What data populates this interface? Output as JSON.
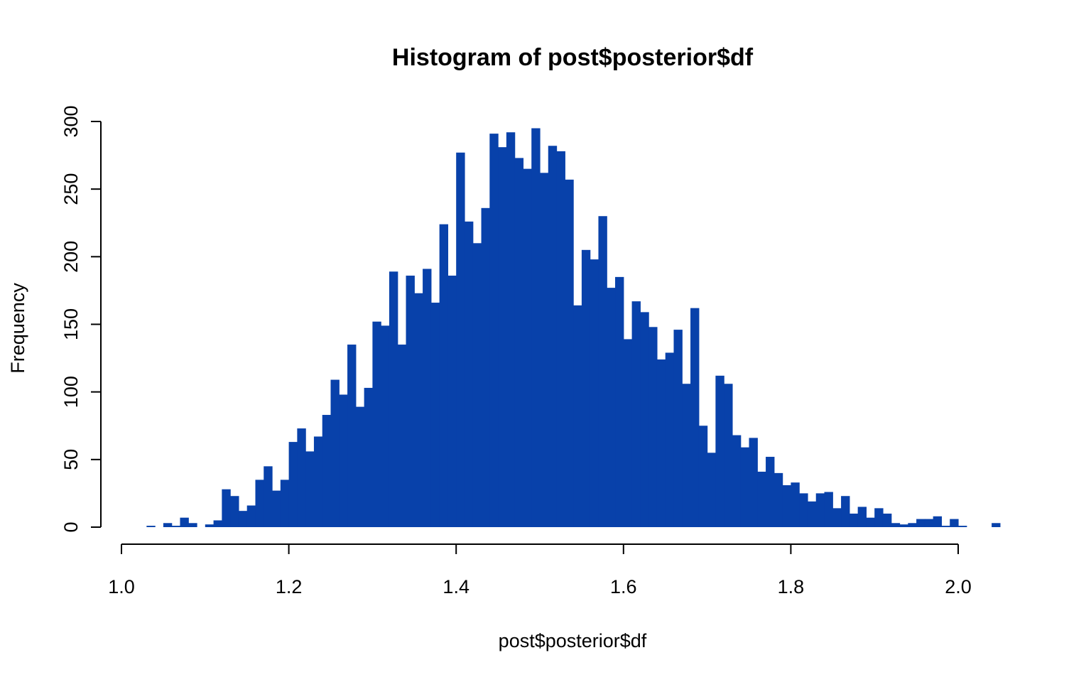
{
  "chart_data": {
    "type": "bar",
    "title": "Histogram of post$posterior$df",
    "xlabel": "post$posterior$df",
    "ylabel": "Frequency",
    "xlim": [
      1.0,
      2.05
    ],
    "ylim": [
      0,
      300
    ],
    "x_ticks": [
      "1.0",
      "1.2",
      "1.4",
      "1.6",
      "1.8",
      "2.0"
    ],
    "x_tick_values": [
      1.0,
      1.2,
      1.4,
      1.6,
      1.8,
      2.0
    ],
    "y_ticks": [
      "0",
      "50",
      "100",
      "150",
      "200",
      "250",
      "300"
    ],
    "y_tick_values": [
      0,
      50,
      100,
      150,
      200,
      250,
      300
    ],
    "bin_start": 1.03,
    "bin_width": 0.01,
    "bar_color": "#0841AA",
    "grid": false,
    "legend": "none",
    "values": [
      1,
      0,
      3,
      1,
      7,
      3,
      0,
      2,
      5,
      28,
      23,
      12,
      16,
      35,
      45,
      27,
      35,
      63,
      73,
      56,
      67,
      83,
      109,
      98,
      135,
      89,
      103,
      152,
      149,
      189,
      135,
      186,
      173,
      191,
      166,
      224,
      186,
      277,
      226,
      210,
      236,
      291,
      281,
      292,
      273,
      265,
      295,
      262,
      282,
      278,
      257,
      164,
      205,
      198,
      230,
      177,
      185,
      139,
      167,
      159,
      148,
      124,
      129,
      146,
      106,
      162,
      75,
      55,
      112,
      106,
      68,
      59,
      66,
      41,
      52,
      40,
      31,
      33,
      25,
      19,
      25,
      26,
      14,
      23,
      10,
      15,
      7,
      14,
      10,
      3,
      2,
      3,
      6,
      6,
      8,
      1,
      6,
      1,
      0,
      0,
      0,
      3
    ]
  }
}
